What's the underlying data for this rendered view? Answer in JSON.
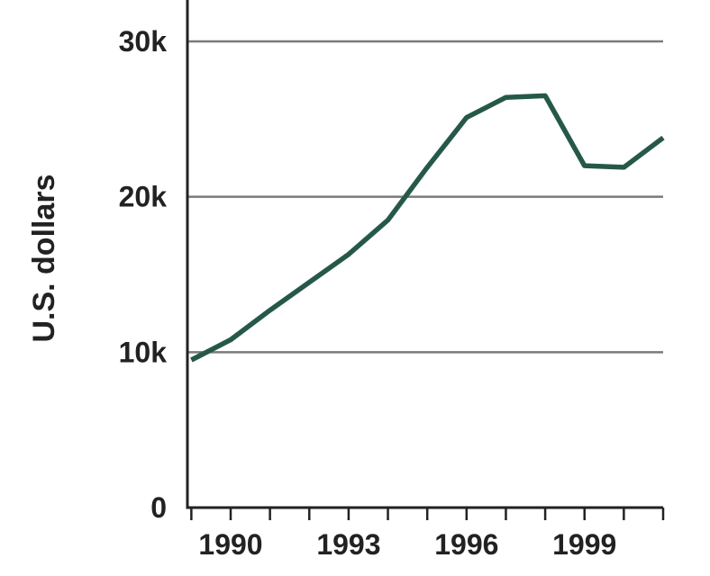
{
  "chart_data": {
    "type": "line",
    "ylabel": "U.S. dollars",
    "xlabel": "",
    "x": [
      1989,
      1990,
      1991,
      1992,
      1993,
      1994,
      1995,
      1996,
      1997,
      1998,
      1999,
      2000,
      2001
    ],
    "series": [
      {
        "values": [
          9500,
          10800,
          12700,
          14500,
          16300,
          18500,
          21900,
          25100,
          26400,
          26500,
          22000,
          21900,
          23800
        ]
      }
    ],
    "xlim": [
      1988.9,
      2001
    ],
    "ylim": [
      0,
      30000
    ],
    "yticks": [
      0,
      10000,
      20000,
      30000
    ],
    "ytick_labels": [
      "0",
      "10k",
      "20k",
      "30k"
    ],
    "xticks": [
      1990,
      1993,
      1996,
      1999
    ],
    "xtick_labels": [
      "1990",
      "1993",
      "1996",
      "1999"
    ],
    "grid": true,
    "line_color": "#26584a",
    "grid_color": "#7a7a7a"
  }
}
